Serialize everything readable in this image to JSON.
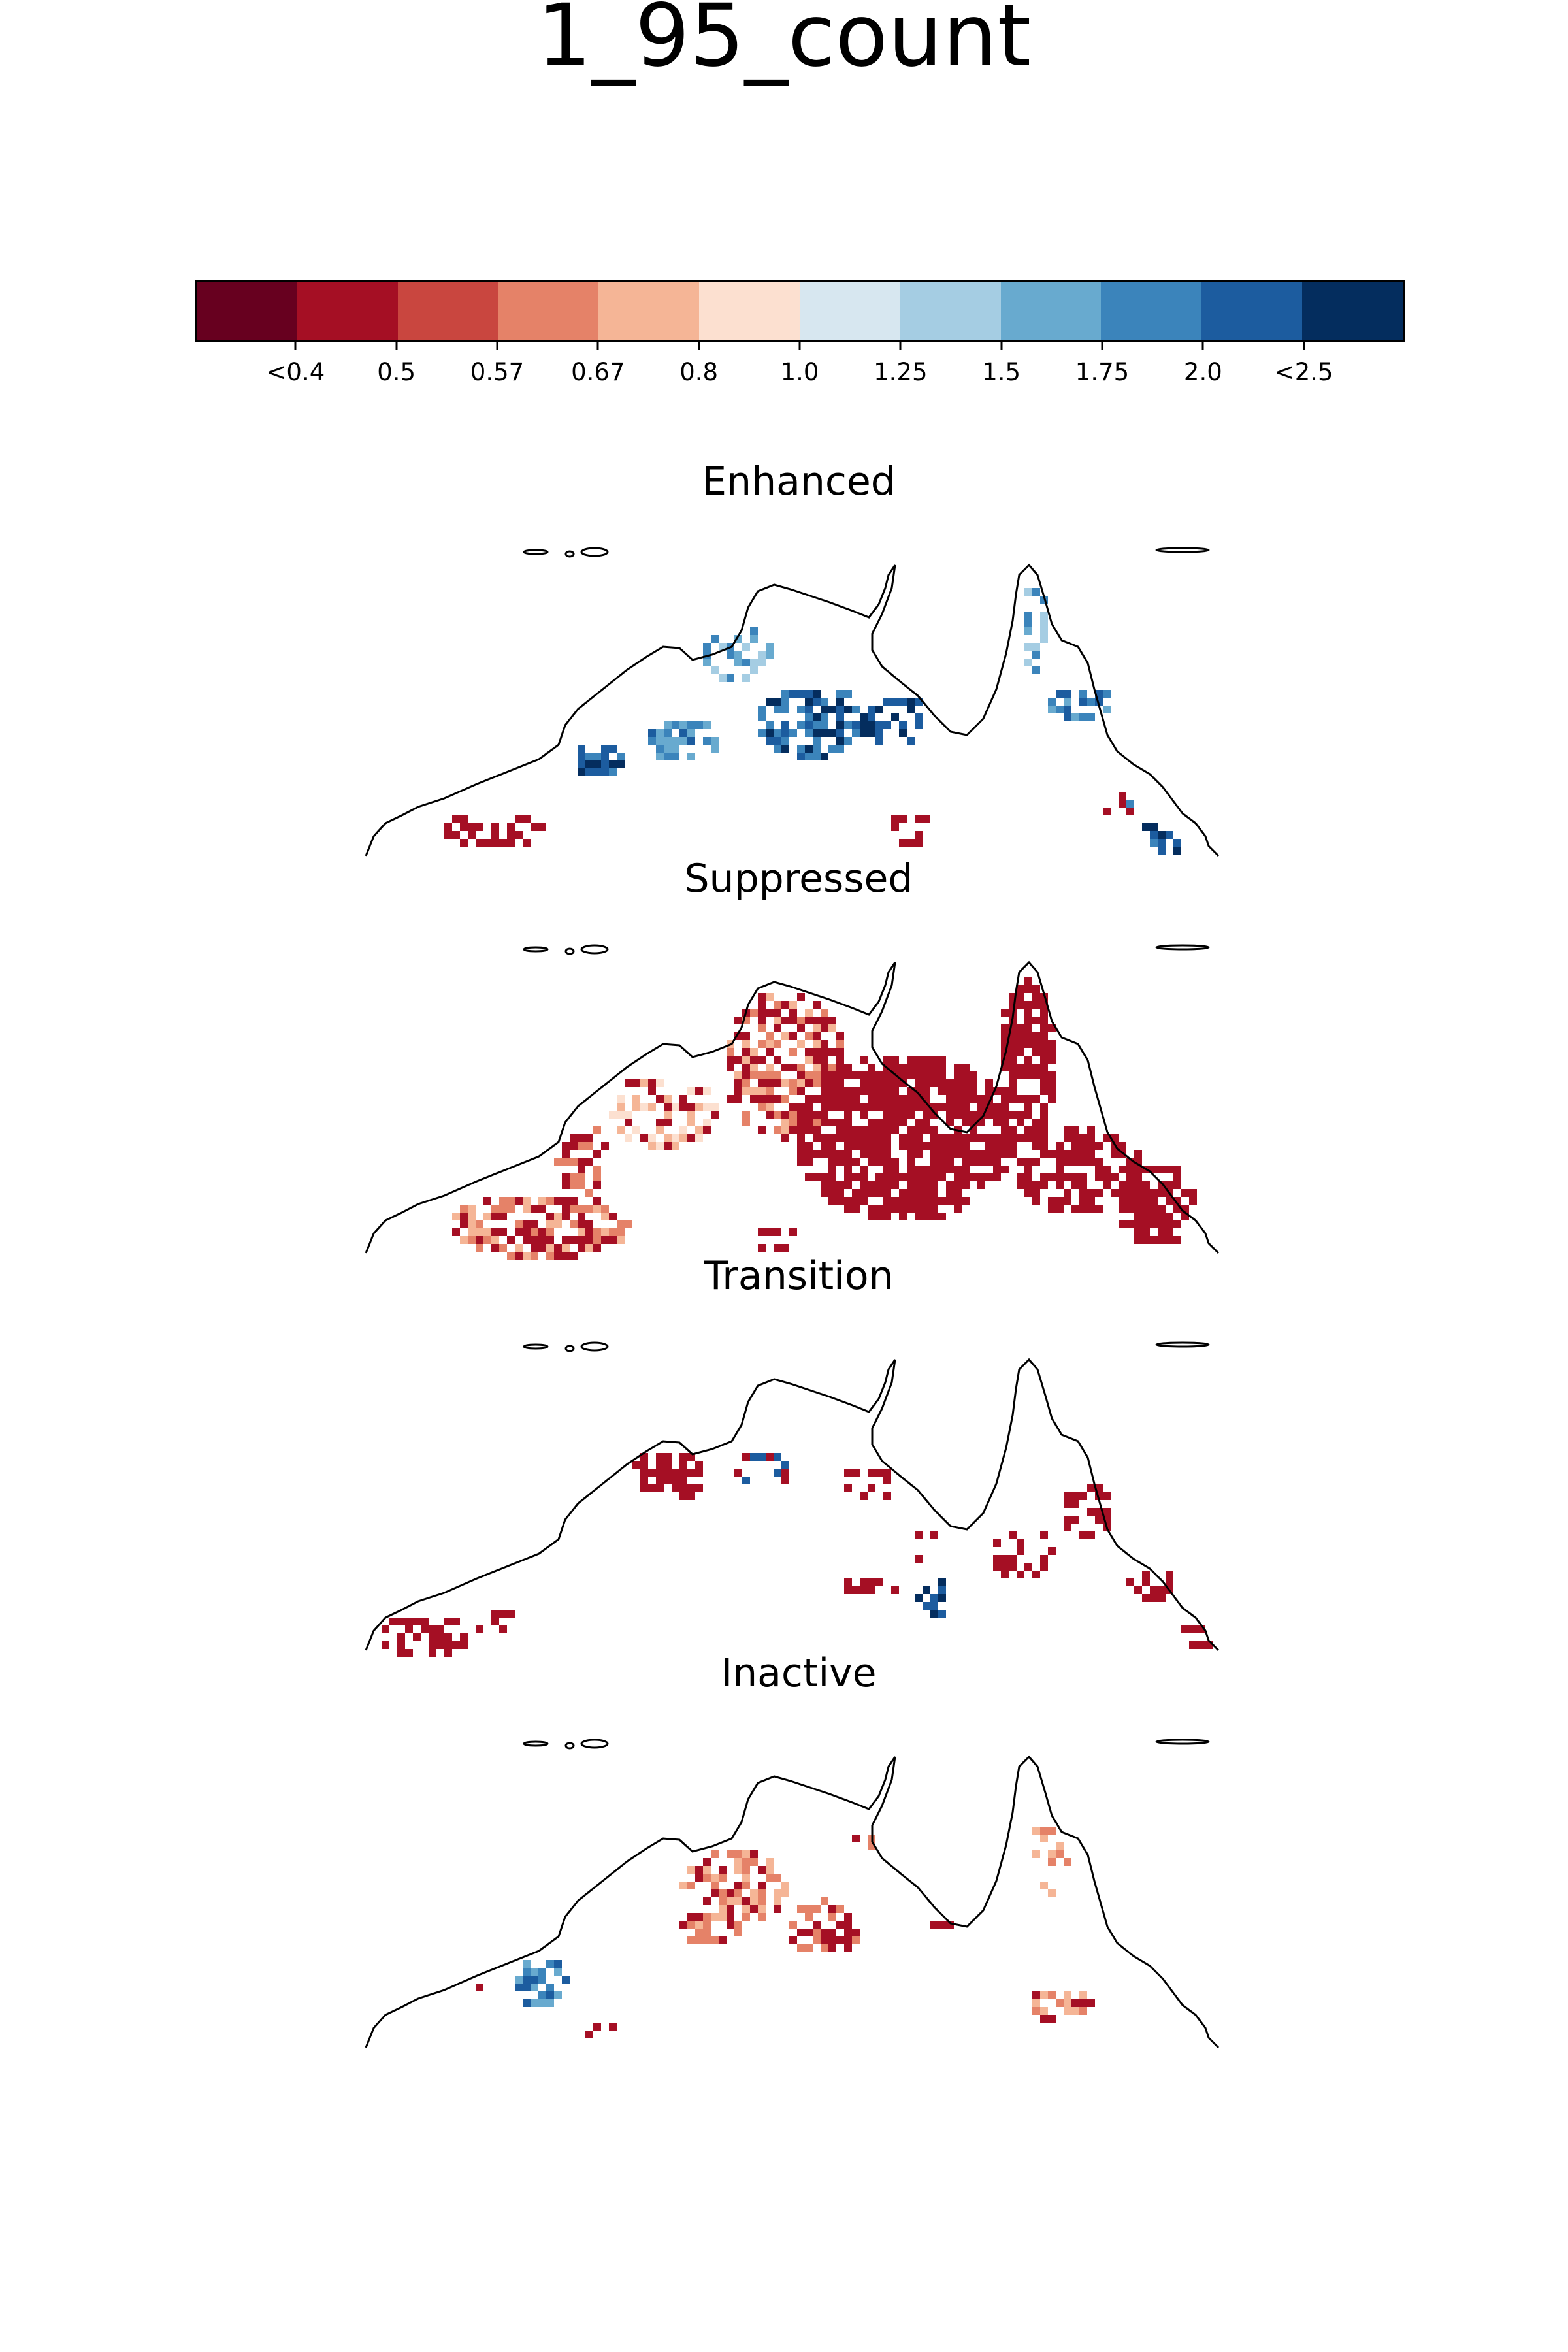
{
  "title": "1_95_count",
  "colorbar": {
    "colors": [
      "#67001f",
      "#a50f24",
      "#c9463f",
      "#e58268",
      "#f5b596",
      "#fce0d0",
      "#d7e7f0",
      "#a5cde3",
      "#68aacf",
      "#3b84bb",
      "#1c5c9f",
      "#042d5e"
    ],
    "tick_labels": [
      "<0.4",
      "0.5",
      "0.57",
      "0.67",
      "0.8",
      "1.0",
      "1.25",
      "1.5",
      "1.75",
      "2.0",
      "<2.5"
    ]
  },
  "panels": [
    {
      "title": "Enhanced"
    },
    {
      "title": "Suppressed"
    },
    {
      "title": "Transition"
    },
    {
      "title": "Inactive"
    }
  ]
}
